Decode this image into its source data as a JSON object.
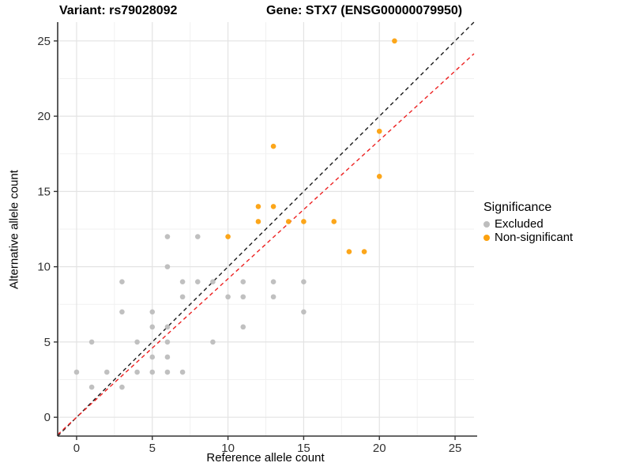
{
  "header": {
    "variant_title": "Variant: rs79028092",
    "gene_title": "Gene: STX7 (ENSG00000079950)"
  },
  "legend": {
    "title": "Significance",
    "items": [
      {
        "label": "Excluded",
        "color": "#BDBDBD"
      },
      {
        "label": "Non-significant",
        "color": "#FCA10E"
      }
    ]
  },
  "chart_data": {
    "type": "scatter",
    "title": "Variant: rs79028092 | Gene: STX7 (ENSG00000079950)",
    "xlabel": "Reference allele count",
    "ylabel": "Alternative allele count",
    "xlim": [
      -1.25,
      26.25
    ],
    "ylim": [
      -1.25,
      26.25
    ],
    "xticks": [
      0,
      5,
      10,
      15,
      20,
      25
    ],
    "yticks": [
      0,
      5,
      10,
      15,
      20,
      25
    ],
    "minor_ticks": [
      2.5,
      7.5,
      12.5,
      17.5,
      22.5
    ],
    "grid": "major+minor",
    "legend_position": "right",
    "legend_title": "Significance",
    "point_radius": 3.3,
    "series": [
      {
        "name": "Excluded",
        "color": "#BDBDBD",
        "points": [
          [
            0,
            3
          ],
          [
            1,
            2
          ],
          [
            1,
            5
          ],
          [
            2,
            3
          ],
          [
            3,
            2
          ],
          [
            3,
            7
          ],
          [
            3,
            9
          ],
          [
            4,
            3
          ],
          [
            4,
            5
          ],
          [
            5,
            3
          ],
          [
            5,
            4
          ],
          [
            5,
            6
          ],
          [
            5,
            7
          ],
          [
            6,
            3
          ],
          [
            6,
            4
          ],
          [
            6,
            5
          ],
          [
            6,
            6
          ],
          [
            6,
            10
          ],
          [
            6,
            12
          ],
          [
            7,
            3
          ],
          [
            7,
            8
          ],
          [
            7,
            9
          ],
          [
            8,
            9
          ],
          [
            8,
            12
          ],
          [
            9,
            5
          ],
          [
            9,
            9
          ],
          [
            10,
            8
          ],
          [
            11,
            6
          ],
          [
            11,
            8
          ],
          [
            11,
            9
          ],
          [
            13,
            8
          ],
          [
            13,
            9
          ],
          [
            15,
            7
          ],
          [
            15,
            9
          ]
        ]
      },
      {
        "name": "Non-significant",
        "color": "#FCA10E",
        "points": [
          [
            10,
            12
          ],
          [
            12,
            13
          ],
          [
            12,
            14
          ],
          [
            13,
            14
          ],
          [
            13,
            18
          ],
          [
            14,
            13
          ],
          [
            15,
            13
          ],
          [
            17,
            13
          ],
          [
            18,
            11
          ],
          [
            19,
            11
          ],
          [
            20,
            16
          ],
          [
            20,
            19
          ],
          [
            21,
            25
          ]
        ]
      }
    ],
    "ablines": [
      {
        "name": "identity-line",
        "slope": 1.0,
        "intercept": 0,
        "color": "#1A1A1A",
        "style": "dashed"
      },
      {
        "name": "fit-line",
        "slope": 0.92,
        "intercept": 0,
        "color": "#ED2121",
        "style": "dashed"
      }
    ],
    "colors": {
      "major_grid": "#E3E3E3",
      "minor_grid": "#F1F1F1",
      "axis_line": "#333333",
      "tick_text": "#323232"
    }
  }
}
